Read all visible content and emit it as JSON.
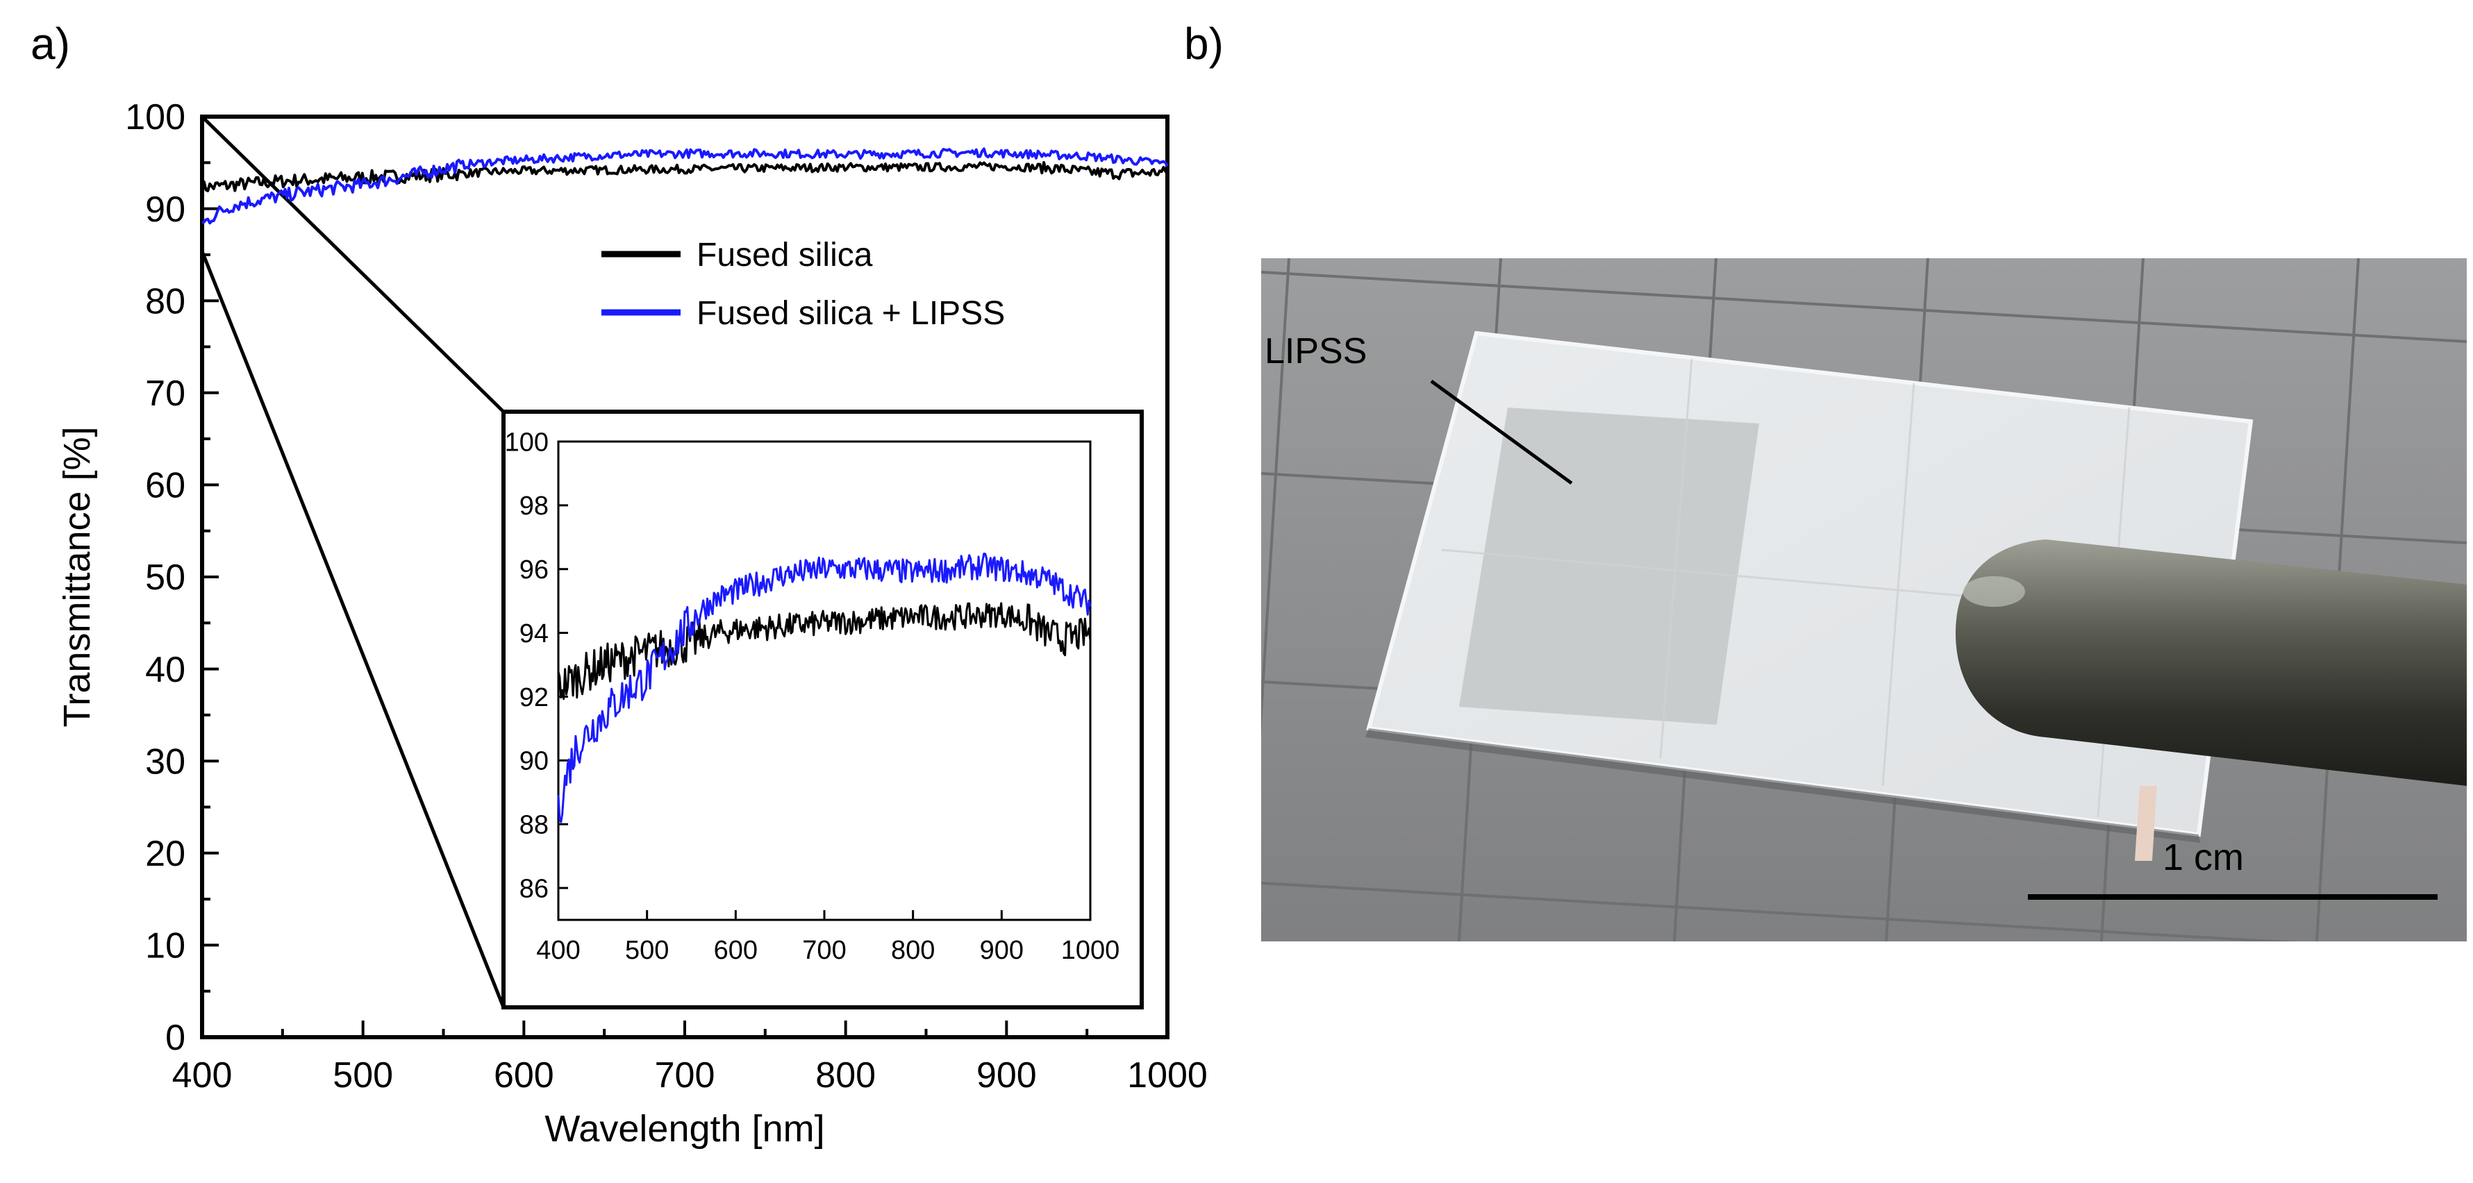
{
  "panels": {
    "a_label": "a)",
    "b_label": "b)"
  },
  "chart_data": [
    {
      "type": "line",
      "panel": "a",
      "xlabel": "Wavelength [nm]",
      "ylabel": "Transmittance [%]",
      "xlim": [
        400,
        1000
      ],
      "ylim": [
        0,
        100
      ],
      "xticks": [
        400,
        500,
        600,
        700,
        800,
        900,
        1000
      ],
      "yticks": [
        0,
        10,
        20,
        30,
        40,
        50,
        60,
        70,
        80,
        90,
        100
      ],
      "legend": {
        "position": "top-right"
      },
      "series": [
        {
          "name": "Fused silica",
          "color": "#000000",
          "x": [
            400,
            420,
            450,
            500,
            550,
            580,
            600,
            650,
            700,
            750,
            800,
            850,
            900,
            930,
            950,
            970,
            1000
          ],
          "values": [
            92.3,
            92.6,
            93.0,
            93.4,
            93.7,
            94.0,
            94.1,
            94.2,
            94.3,
            94.4,
            94.5,
            94.5,
            94.6,
            94.4,
            94.0,
            93.8,
            94.0
          ]
        },
        {
          "name": "Fused silica + LIPSS",
          "color": "#1a1aff",
          "x": [
            400,
            410,
            420,
            440,
            460,
            480,
            500,
            520,
            540,
            560,
            580,
            600,
            620,
            650,
            700,
            750,
            800,
            850,
            880,
            900,
            920,
            950,
            980,
            1000
          ],
          "values": [
            88.3,
            89.6,
            90.4,
            91.1,
            91.7,
            92.2,
            92.6,
            93.3,
            94.0,
            94.7,
            95.1,
            95.3,
            95.5,
            95.8,
            96.0,
            96.0,
            95.9,
            96.0,
            96.1,
            96.0,
            95.9,
            95.7,
            95.2,
            94.9
          ]
        }
      ]
    },
    {
      "type": "line",
      "panel": "a-inset",
      "xlim": [
        400,
        1000
      ],
      "ylim": [
        85,
        100
      ],
      "xticks": [
        400,
        500,
        600,
        700,
        800,
        900,
        1000
      ],
      "yticks": [
        86,
        88,
        90,
        92,
        94,
        96,
        98,
        100
      ],
      "series": [
        {
          "name": "Fused silica",
          "color": "#000000",
          "x": [
            400,
            420,
            450,
            500,
            550,
            580,
            600,
            650,
            700,
            750,
            800,
            850,
            900,
            930,
            950,
            970,
            1000
          ],
          "values": [
            92.3,
            92.6,
            93.0,
            93.4,
            93.7,
            94.0,
            94.1,
            94.2,
            94.3,
            94.4,
            94.5,
            94.5,
            94.6,
            94.4,
            94.0,
            93.8,
            94.0
          ]
        },
        {
          "name": "Fused silica + LIPSS",
          "color": "#1a1aff",
          "x": [
            400,
            410,
            420,
            440,
            460,
            480,
            500,
            520,
            540,
            560,
            580,
            600,
            620,
            650,
            700,
            750,
            800,
            850,
            880,
            900,
            920,
            950,
            980,
            1000
          ],
          "values": [
            88.3,
            89.6,
            90.4,
            91.1,
            91.7,
            92.2,
            92.6,
            93.3,
            94.0,
            94.7,
            95.1,
            95.3,
            95.5,
            95.8,
            96.0,
            96.0,
            95.9,
            96.0,
            96.1,
            96.0,
            95.9,
            95.7,
            95.2,
            94.9
          ]
        }
      ]
    }
  ],
  "photo": {
    "annotation": "LIPSS",
    "scale_bar_label": "1 cm"
  }
}
